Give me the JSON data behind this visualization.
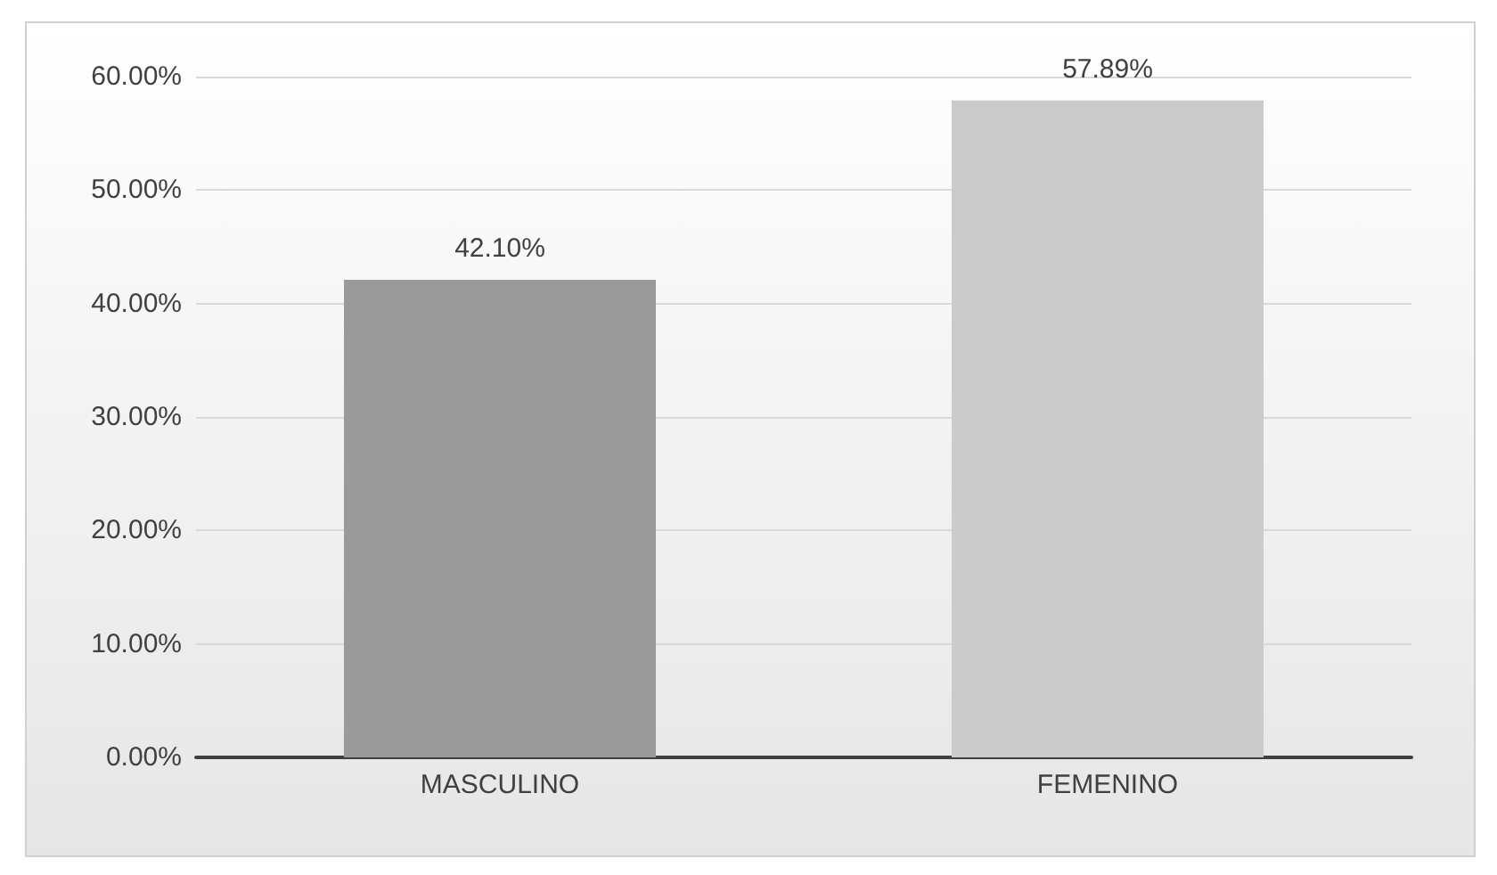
{
  "chart_data": {
    "type": "bar",
    "categories": [
      "MASCULINO",
      "FEMENINO"
    ],
    "values": [
      42.1,
      57.89
    ],
    "colors": [
      "#9a9a9a",
      "#cbcbcb"
    ],
    "value_labels": [
      "42.10%",
      "57.89%"
    ],
    "ylim": [
      0,
      60
    ],
    "yticks": [
      {
        "value": 0,
        "label": "0.00%"
      },
      {
        "value": 10,
        "label": "10.00%"
      },
      {
        "value": 20,
        "label": "20.00%"
      },
      {
        "value": 30,
        "label": "30.00%"
      },
      {
        "value": 40,
        "label": "40.00%"
      },
      {
        "value": 50,
        "label": "50.00%"
      },
      {
        "value": 60,
        "label": "60.00%"
      }
    ],
    "grid": true
  }
}
